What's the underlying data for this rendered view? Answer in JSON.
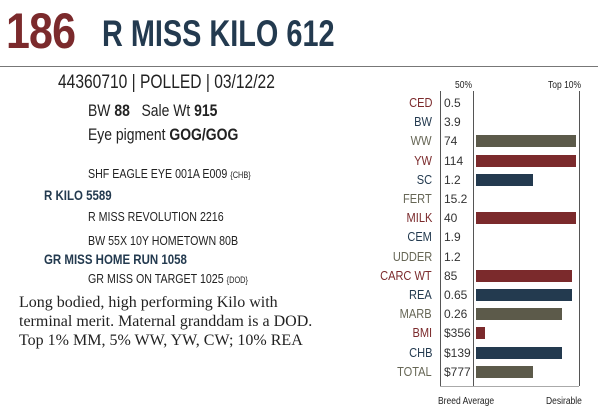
{
  "header": {
    "lot": "186",
    "name": "R MISS KILO 612"
  },
  "info": {
    "id_line": "44360710 | POLLED | 03/12/22",
    "bw_label": "BW",
    "bw_value": "88",
    "sale_label": "Sale Wt",
    "sale_value": "915",
    "eye_label": "Eye pigment",
    "eye_value": "GOG/GOG"
  },
  "pedigree": {
    "sire_sire": "SHF EAGLE EYE 001A E009",
    "sire_sire_tag": "{CHB}",
    "sire": "R KILO 5589",
    "sire_dam": "R MISS REVOLUTION 2216",
    "dam_sire": "BW 55X 10Y HOMETOWN 80B",
    "dam": "GR MISS HOME RUN 1058",
    "dam_dam": "GR MISS ON TARGET 1025",
    "dam_dam_tag": "{DOD}"
  },
  "description": [
    "Long bodied, high performing Kilo with",
    "terminal merit. Maternal granddam is a DOD.",
    "Top 1% MM, 5% WW, YW, CW; 10% REA"
  ],
  "chart_data": {
    "type": "bar",
    "header_left": "50%",
    "header_right": "Top 10%",
    "footer_left": "Breed Average",
    "footer_right": "Desirable",
    "rows": [
      {
        "label": "CED",
        "value": "0.5",
        "bar": 0,
        "label_color": "#7b2a2c",
        "bar_color": ""
      },
      {
        "label": "BW",
        "value": "3.9",
        "bar": 0,
        "label_color": "#233a4f",
        "bar_color": ""
      },
      {
        "label": "WW",
        "value": "74",
        "bar": 1.0,
        "label_color": "#666655",
        "bar_color": "#5c5a4a"
      },
      {
        "label": "YW",
        "value": "114",
        "bar": 1.0,
        "label_color": "#7b2a2c",
        "bar_color": "#7b2a2c"
      },
      {
        "label": "SC",
        "value": "1.2",
        "bar": 0.57,
        "label_color": "#233a4f",
        "bar_color": "#233a4f"
      },
      {
        "label": "FERT",
        "value": "15.2",
        "bar": 0,
        "label_color": "#666655",
        "bar_color": ""
      },
      {
        "label": "MILK",
        "value": "40",
        "bar": 1.0,
        "label_color": "#7b2a2c",
        "bar_color": "#7b2a2c"
      },
      {
        "label": "CEM",
        "value": "1.9",
        "bar": 0,
        "label_color": "#233a4f",
        "bar_color": ""
      },
      {
        "label": "UDDER",
        "value": "1.2",
        "bar": 0,
        "label_color": "#666655",
        "bar_color": ""
      },
      {
        "label": "CARC WT",
        "value": "85",
        "bar": 0.96,
        "label_color": "#7b2a2c",
        "bar_color": "#7b2a2c"
      },
      {
        "label": "REA",
        "value": "0.65",
        "bar": 0.96,
        "label_color": "#233a4f",
        "bar_color": "#233a4f"
      },
      {
        "label": "MARB",
        "value": "0.26",
        "bar": 0.86,
        "label_color": "#666655",
        "bar_color": "#5c5a4a"
      },
      {
        "label": "BMI",
        "value": "$356",
        "bar": 0.09,
        "label_color": "#7b2a2c",
        "bar_color": "#7b2a2c"
      },
      {
        "label": "CHB",
        "value": "$139",
        "bar": 0.86,
        "label_color": "#233a4f",
        "bar_color": "#233a4f"
      },
      {
        "label": "TOTAL",
        "value": "$777",
        "bar": 0.57,
        "label_color": "#666655",
        "bar_color": "#5c5a4a"
      }
    ]
  }
}
